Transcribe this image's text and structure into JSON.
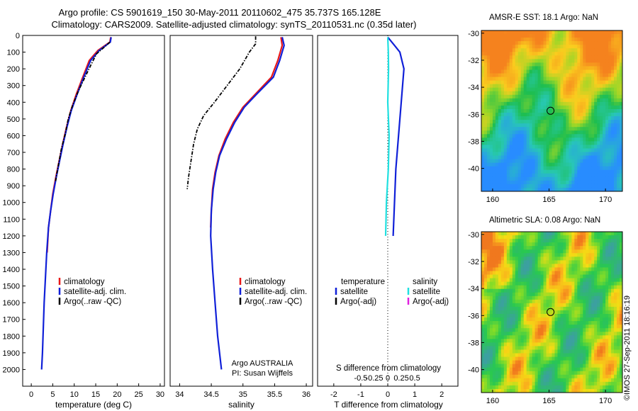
{
  "header": {
    "line1": "Argo profile: CS 5901619_150 30-May-2011 20110602_475 35.737S 165.128E",
    "line2": "Climatology: CARS2009. Satellite-adjusted climatology: synTS_20110531.nc (0.35d later)"
  },
  "colors": {
    "climatology": "#e81818",
    "satellite": "#1020d8",
    "argo": "#000000",
    "sal_satellite": "#20e0e0",
    "sal_argo": "#e020e0"
  },
  "chart_data": [
    {
      "type": "line",
      "xlabel": "temperature (deg C)",
      "ylabel": "",
      "xlim": [
        -2,
        31
      ],
      "ylim": [
        2100,
        0
      ],
      "xticks": [
        0,
        5,
        10,
        15,
        20,
        25,
        30
      ],
      "yticks": [
        0,
        100,
        200,
        300,
        400,
        500,
        600,
        700,
        800,
        900,
        1000,
        1100,
        1200,
        1300,
        1400,
        1500,
        1600,
        1700,
        1800,
        1900,
        2000
      ],
      "legend_position": "lower-middle",
      "series": [
        {
          "name": "climatology",
          "color": "#e81818",
          "style": "solid",
          "points": [
            [
              18.5,
              10
            ],
            [
              18.3,
              40
            ],
            [
              15.5,
              90
            ],
            [
              13.5,
              150
            ],
            [
              12,
              250
            ],
            [
              10.5,
              350
            ],
            [
              9.2,
              450
            ],
            [
              8.2,
              550
            ],
            [
              7.3,
              650
            ],
            [
              6.5,
              750
            ],
            [
              5.7,
              850
            ],
            [
              5,
              950
            ],
            [
              4.5,
              1050
            ],
            [
              4,
              1150
            ],
            [
              3.7,
              1300
            ]
          ]
        },
        {
          "name": "satellite-adj. clim.",
          "color": "#1020d8",
          "style": "solid",
          "points": [
            [
              18.6,
              10
            ],
            [
              18.4,
              40
            ],
            [
              15.8,
              90
            ],
            [
              13.8,
              150
            ],
            [
              12.2,
              250
            ],
            [
              10.7,
              350
            ],
            [
              9.3,
              450
            ],
            [
              8.3,
              550
            ],
            [
              7.4,
              650
            ],
            [
              6.6,
              750
            ],
            [
              5.8,
              850
            ],
            [
              5.1,
              950
            ],
            [
              4.5,
              1050
            ],
            [
              4,
              1150
            ],
            [
              3.6,
              1300
            ],
            [
              3.3,
              1450
            ],
            [
              3.0,
              1600
            ],
            [
              2.8,
              1750
            ],
            [
              2.6,
              1900
            ],
            [
              2.4,
              2000
            ]
          ]
        },
        {
          "name": "Argo(..raw -QC)",
          "color": "#000000",
          "style": "dashdot",
          "points": [
            [
              18.3,
              40
            ],
            [
              17,
              70
            ],
            [
              15.2,
              110
            ],
            [
              14,
              170
            ],
            [
              12.5,
              250
            ],
            [
              11,
              330
            ],
            [
              9.6,
              420
            ],
            [
              8.6,
              500
            ],
            [
              8,
              580
            ],
            [
              7,
              680
            ],
            [
              6.5,
              750
            ],
            [
              6,
              820
            ],
            [
              5.6,
              880
            ]
          ]
        }
      ]
    },
    {
      "type": "line",
      "xlabel": "salinity",
      "ylabel": "",
      "xlim": [
        33.85,
        36.1
      ],
      "ylim": [
        2100,
        0
      ],
      "xticks": [
        34,
        34.5,
        35,
        35.5,
        36
      ],
      "legend_position": "lower-middle",
      "annotation": [
        "Argo AUSTRALIA",
        "PI: Susan Wijffels"
      ],
      "series": [
        {
          "name": "climatology",
          "color": "#e81818",
          "style": "solid",
          "points": [
            [
              35.6,
              10
            ],
            [
              35.62,
              60
            ],
            [
              35.55,
              150
            ],
            [
              35.45,
              250
            ],
            [
              35.2,
              350
            ],
            [
              35,
              430
            ],
            [
              34.85,
              520
            ],
            [
              34.72,
              620
            ],
            [
              34.62,
              720
            ],
            [
              34.56,
              820
            ],
            [
              34.52,
              920
            ],
            [
              34.5,
              1050
            ],
            [
              34.49,
              1150
            ]
          ]
        },
        {
          "name": "satellite-adj. clim.",
          "color": "#1020d8",
          "style": "solid",
          "points": [
            [
              35.62,
              10
            ],
            [
              35.65,
              60
            ],
            [
              35.58,
              150
            ],
            [
              35.48,
              250
            ],
            [
              35.22,
              350
            ],
            [
              35.02,
              430
            ],
            [
              34.87,
              520
            ],
            [
              34.74,
              620
            ],
            [
              34.63,
              720
            ],
            [
              34.57,
              820
            ],
            [
              34.53,
              920
            ],
            [
              34.5,
              1050
            ],
            [
              34.49,
              1200
            ],
            [
              34.52,
              1400
            ],
            [
              34.56,
              1600
            ],
            [
              34.6,
              1800
            ],
            [
              34.66,
              2000
            ]
          ]
        },
        {
          "name": "Argo(..raw -QC)",
          "color": "#000000",
          "style": "dashdot",
          "points": [
            [
              35.2,
              5
            ],
            [
              35.2,
              50
            ],
            [
              35.1,
              100
            ],
            [
              34.95,
              200
            ],
            [
              34.75,
              300
            ],
            [
              34.55,
              400
            ],
            [
              34.38,
              480
            ],
            [
              34.28,
              560
            ],
            [
              34.22,
              650
            ],
            [
              34.18,
              750
            ],
            [
              34.14,
              850
            ],
            [
              34.12,
              920
            ]
          ]
        }
      ]
    },
    {
      "type": "line",
      "xlabel": "T difference from climatology",
      "xlabel_top": "S difference from climatology",
      "xlim": [
        -2.6,
        2.6
      ],
      "ylim": [
        2100,
        0
      ],
      "xticks": [
        "-2",
        "-1",
        "0",
        "1",
        "2"
      ],
      "xticks_top": [
        "-0.5",
        "-0.25",
        "0",
        "0.25",
        "0.5"
      ],
      "legend_position": "lower-middle",
      "legend_headers": [
        "temperature",
        "salinity"
      ],
      "series": [
        {
          "name": "satellite",
          "group": "temperature",
          "color": "#1020d8",
          "style": "solid",
          "points": [
            [
              0,
              10
            ],
            [
              0.25,
              60
            ],
            [
              0.45,
              100
            ],
            [
              0.6,
              200
            ],
            [
              0.5,
              400
            ],
            [
              0.4,
              600
            ],
            [
              0.3,
              800
            ],
            [
              0.25,
              1000
            ],
            [
              0.2,
              1200
            ]
          ]
        },
        {
          "name": "Argo(-adj)",
          "group": "temperature",
          "color": "#000000",
          "style": "solid",
          "points": []
        },
        {
          "name": "satellite",
          "group": "salinity",
          "color": "#20e0e0",
          "style": "solid",
          "points": [
            [
              0,
              10
            ],
            [
              0.02,
              100
            ],
            [
              0.03,
              200
            ],
            [
              0,
              400
            ],
            [
              0.05,
              600
            ],
            [
              0.02,
              800
            ],
            [
              -0.05,
              1000
            ],
            [
              -0.08,
              1200
            ]
          ]
        },
        {
          "name": "Argo(-adj)",
          "group": "salinity",
          "color": "#e020e0",
          "style": "solid",
          "points": []
        }
      ]
    },
    {
      "type": "heatmap",
      "title": "AMSR-E SST: 18.1 Argo: NaN",
      "xlim": [
        159,
        171.5
      ],
      "ylim": [
        -41.7,
        -29.8
      ],
      "xticks": [
        160,
        165,
        170
      ],
      "yticks": [
        -30,
        -32,
        -34,
        -36,
        -38,
        -40
      ],
      "marker": {
        "lon": 165.13,
        "lat": -35.74
      }
    },
    {
      "type": "heatmap",
      "title": "Altimetric SLA: 0.08 Argo: NaN",
      "xlim": [
        159,
        171.5
      ],
      "ylim": [
        -41.7,
        -29.8
      ],
      "xticks": [
        160,
        165,
        170
      ],
      "yticks": [
        -30,
        -32,
        -34,
        -36,
        -38,
        -40
      ],
      "marker": {
        "lon": 165.13,
        "lat": -35.74
      }
    }
  ],
  "stamp": "©IMOS 27-Sep-2011 18:16:19"
}
